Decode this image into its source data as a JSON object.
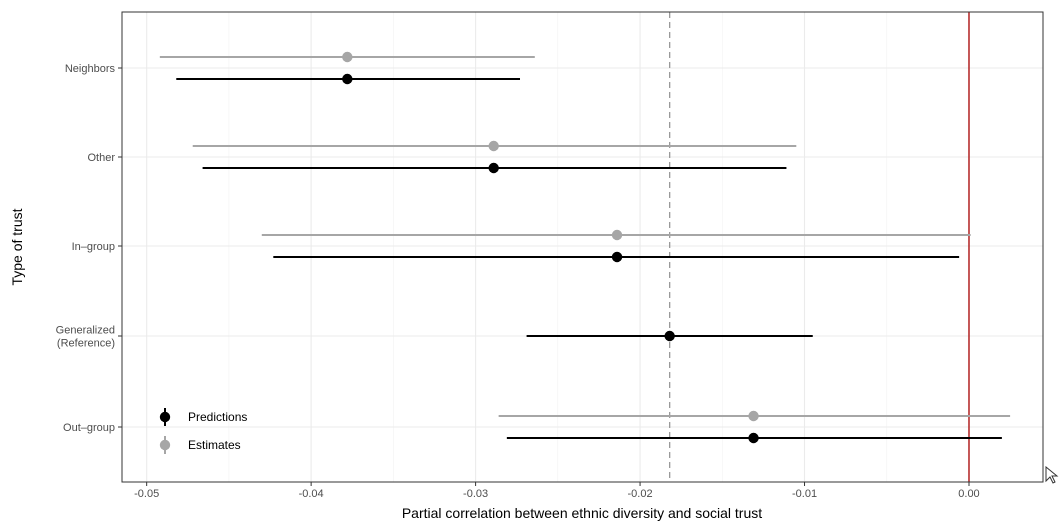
{
  "chart_data": {
    "type": "scatter",
    "subtype": "dot-and-whisker",
    "title": "",
    "xlabel": "Partial correlation between ethnic diversity and social trust",
    "ylabel": "Type of trust",
    "xlim": [
      -0.0515,
      0.0045
    ],
    "x_ticks": [
      -0.05,
      -0.04,
      -0.03,
      -0.02,
      -0.01,
      0.0
    ],
    "x_tick_labels": [
      "-0.05",
      "-0.04",
      "-0.03",
      "-0.02",
      "-0.01",
      "0.00"
    ],
    "categories": [
      "Neighbors",
      "Other",
      "In–group",
      "Generalized (Reference)",
      "Out–group"
    ],
    "category_tick_labels": [
      [
        "Neighbors"
      ],
      [
        "Other"
      ],
      [
        "In–group"
      ],
      [
        "Generalized",
        "(Reference)"
      ],
      [
        "Out–group"
      ]
    ],
    "series": [
      {
        "name": "Estimates",
        "color": "#a6a6a6",
        "points": [
          {
            "category": "Neighbors",
            "value": -0.0378,
            "low": -0.0492,
            "high": -0.0264
          },
          {
            "category": "Other",
            "value": -0.0289,
            "low": -0.0472,
            "high": -0.0105
          },
          {
            "category": "In–group",
            "value": -0.0214,
            "low": -0.043,
            "high": 0.0001
          },
          {
            "category": "Out–group",
            "value": -0.0131,
            "low": -0.0286,
            "high": 0.0025
          }
        ]
      },
      {
        "name": "Predictions",
        "color": "#000000",
        "points": [
          {
            "category": "Neighbors",
            "value": -0.0378,
            "low": -0.0482,
            "high": -0.0273
          },
          {
            "category": "Other",
            "value": -0.0289,
            "low": -0.0466,
            "high": -0.0111
          },
          {
            "category": "In–group",
            "value": -0.0214,
            "low": -0.0423,
            "high": -0.0006
          },
          {
            "category": "Generalized (Reference)",
            "value": -0.0182,
            "low": -0.0269,
            "high": -0.0095
          },
          {
            "category": "Out–group",
            "value": -0.0131,
            "low": -0.0281,
            "high": 0.002
          }
        ]
      }
    ],
    "reference_lines": [
      {
        "axis": "x",
        "value": 0.0,
        "color": "#b22222",
        "style": "solid"
      },
      {
        "axis": "x",
        "value": -0.0182,
        "color": "#999999",
        "style": "dashed"
      }
    ],
    "legend": {
      "position": "bottom-left",
      "entries": [
        "Predictions",
        "Estimates"
      ]
    },
    "grid": true
  }
}
